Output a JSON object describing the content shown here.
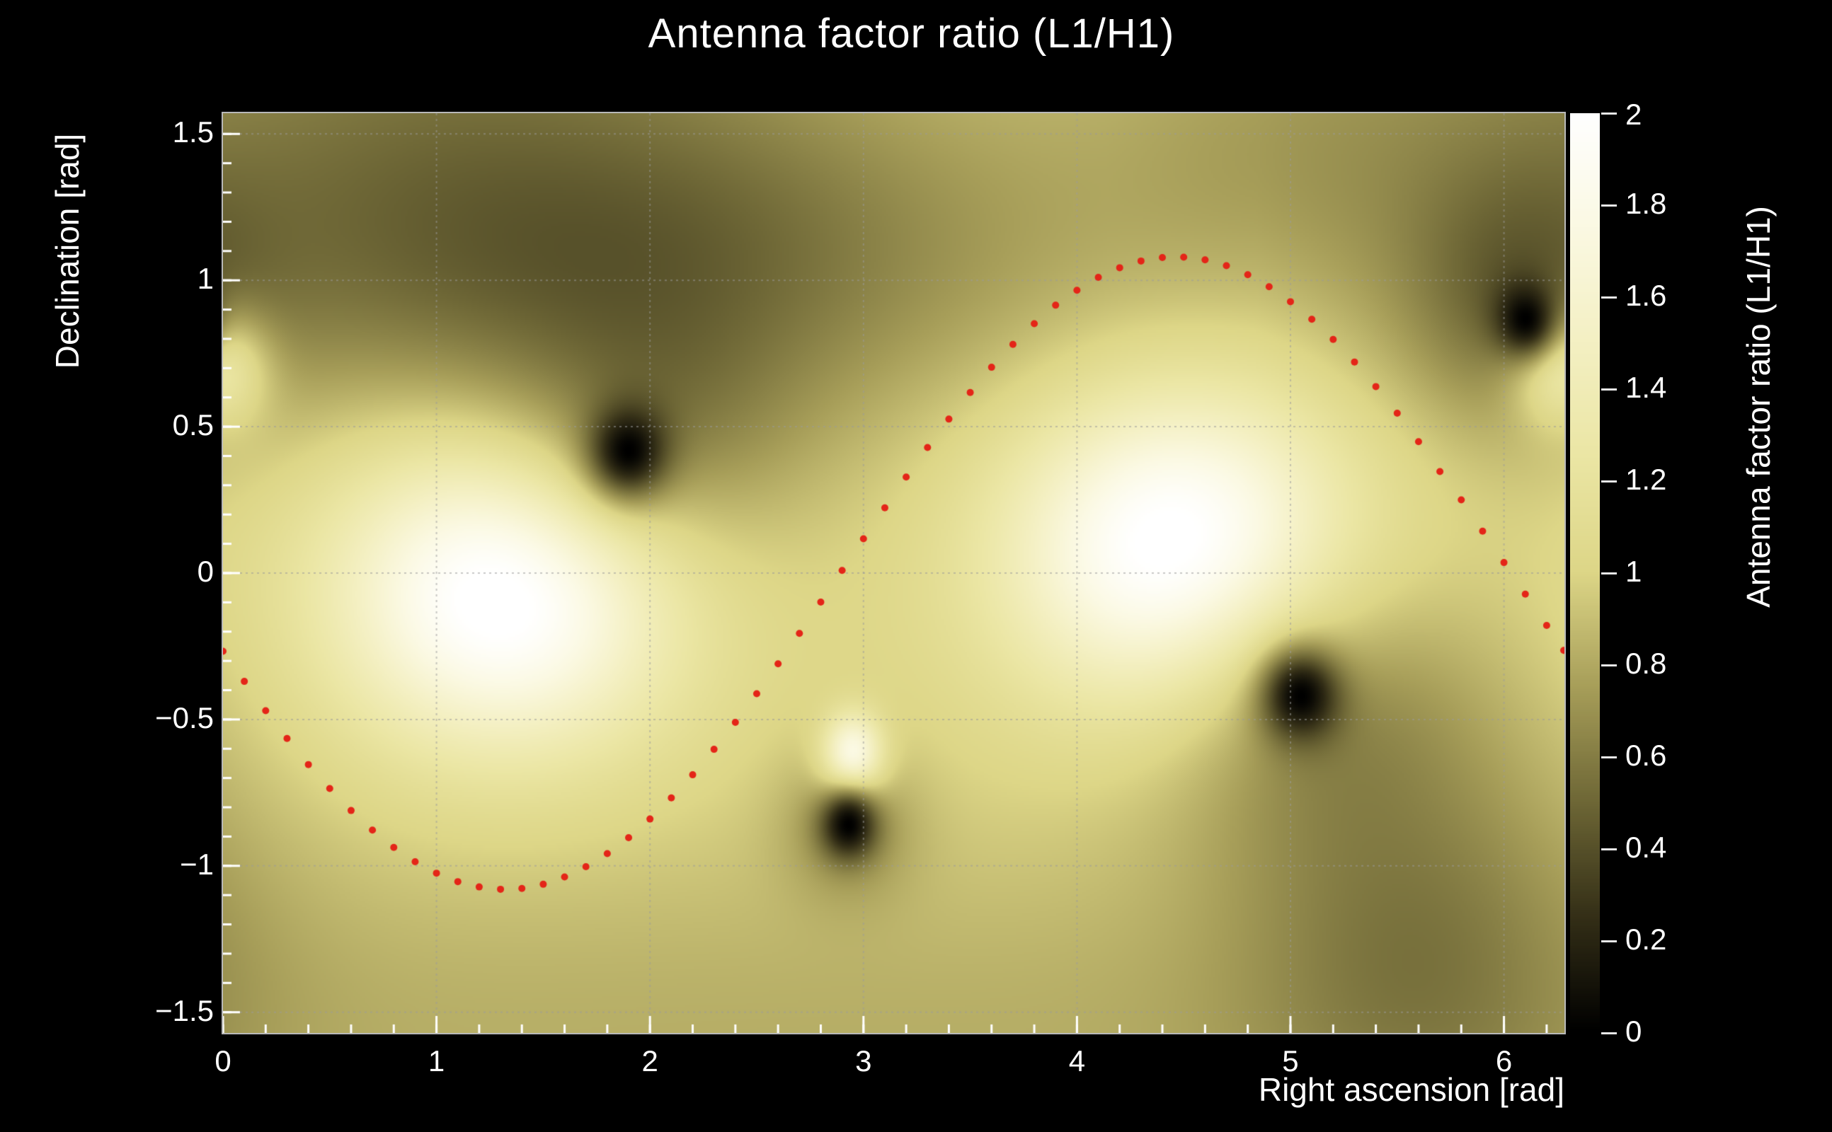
{
  "figure": {
    "background": "#000000",
    "text_color": "#ffffff",
    "frame_color": "#b9b9b9",
    "grid_color": "#9a9a9a"
  },
  "chart_data": {
    "type": "heatmap",
    "title": "Antenna factor ratio (L1/H1)",
    "xlabel": "Right ascension [rad]",
    "ylabel": "Declination [rad]",
    "colorbar_label": "Antenna factor ratio (L1/H1)",
    "xlim": [
      0,
      6.2832
    ],
    "ylim": [
      -1.5708,
      1.5708
    ],
    "zlim": [
      0,
      2
    ],
    "xticks": [
      0,
      1,
      2,
      3,
      4,
      5,
      6
    ],
    "xtick_labels": [
      "0",
      "1",
      "2",
      "3",
      "4",
      "5",
      "6"
    ],
    "xminor_step": 0.2,
    "yticks": [
      -1.5,
      -1,
      -0.5,
      0,
      0.5,
      1,
      1.5
    ],
    "ytick_labels": [
      "−1.5",
      "−1",
      "−0.5",
      "0",
      "0.5",
      "1",
      "1.5"
    ],
    "yminor_step": 0.1,
    "colorbar_ticks": [
      0,
      0.2,
      0.4,
      0.6,
      0.8,
      1,
      1.2,
      1.4,
      1.6,
      1.8,
      2
    ],
    "colorbar_tick_labels": [
      "0",
      "0.2",
      "0.4",
      "0.6",
      "0.8",
      "1",
      "1.2",
      "1.4",
      "1.6",
      "1.8",
      "2"
    ],
    "grid": true,
    "base_value": 1.0,
    "colormap_stops": [
      [
        0.0,
        "#000000"
      ],
      [
        0.25,
        "#342f17"
      ],
      [
        0.5,
        "#6e6736"
      ],
      [
        0.75,
        "#a79e59"
      ],
      [
        1.0,
        "#ddd687"
      ],
      [
        1.25,
        "#ebe6a4"
      ],
      [
        1.5,
        "#f4f0c3"
      ],
      [
        1.75,
        "#fbf9e3"
      ],
      [
        2.0,
        "#ffffff"
      ]
    ],
    "bright_spots": [
      {
        "ra": 1.32,
        "dec": -0.05,
        "sigma_ra": 0.55,
        "sigma_dec": 0.38,
        "peak_add": 1.15
      },
      {
        "ra": 4.47,
        "dec": 0.08,
        "sigma_ra": 0.55,
        "sigma_dec": 0.38,
        "peak_add": 1.15
      },
      {
        "ra": 2.95,
        "dec": -0.63,
        "sigma_ra": 0.1,
        "sigma_dec": 0.1,
        "peak_add": 1.05
      },
      {
        "ra": 6.26,
        "dec": 0.73,
        "sigma_ra": 0.16,
        "sigma_dec": 0.14,
        "peak_add": 1.05
      }
    ],
    "null_spots": [
      {
        "ra": 1.9,
        "dec": 0.42,
        "sigma_ra": 0.13,
        "sigma_dec": 0.11,
        "depth": 1.0
      },
      {
        "ra": 5.05,
        "dec": -0.42,
        "sigma_ra": 0.13,
        "sigma_dec": 0.11,
        "depth": 1.0
      },
      {
        "ra": 2.93,
        "dec": -0.86,
        "sigma_ra": 0.09,
        "sigma_dec": 0.08,
        "depth": 1.0
      },
      {
        "ra": 6.1,
        "dec": 0.87,
        "sigma_ra": 0.1,
        "sigma_dec": 0.09,
        "depth": 1.0
      }
    ],
    "shading_regions": [
      {
        "ra": 1.7,
        "dec": 1.08,
        "sigma_ra": 1.5,
        "sigma_dec": 0.42,
        "depth": 0.5
      },
      {
        "ra": 1.0,
        "dec": 1.62,
        "sigma_ra": 1.3,
        "sigma_dec": 0.5,
        "depth": 0.3
      },
      {
        "ra": 2.0,
        "dec": 0.5,
        "sigma_ra": 0.5,
        "sigma_dec": 0.35,
        "depth": 0.35
      },
      {
        "ra": 5.15,
        "dec": -0.5,
        "sigma_ra": 0.55,
        "sigma_dec": 0.38,
        "depth": 0.35
      },
      {
        "ra": 5.6,
        "dec": -1.3,
        "sigma_ra": 0.6,
        "sigma_dec": 0.5,
        "depth": 0.35
      },
      {
        "ra": 6.05,
        "dec": 0.95,
        "sigma_ra": 0.35,
        "sigma_dec": 0.3,
        "depth": 0.4
      },
      {
        "ra": 2.93,
        "dec": -0.86,
        "sigma_ra": 0.22,
        "sigma_dec": 0.18,
        "depth": 0.3
      },
      {
        "ra": 3.14,
        "dec": -1.62,
        "sigma_ra": 9.0,
        "sigma_dec": 0.5,
        "depth": 0.18
      },
      {
        "ra": 5.0,
        "dec": 1.45,
        "sigma_ra": 0.8,
        "sigma_dec": 0.4,
        "depth": 0.2
      }
    ],
    "overlay_curve": {
      "description": "red dotted sky track",
      "color": "#e42518",
      "marker": "dot",
      "points": [
        [
          0.0,
          -0.267
        ],
        [
          0.1,
          -0.37
        ],
        [
          0.2,
          -0.47
        ],
        [
          0.3,
          -0.565
        ],
        [
          0.4,
          -0.654
        ],
        [
          0.5,
          -0.736
        ],
        [
          0.6,
          -0.811
        ],
        [
          0.7,
          -0.878
        ],
        [
          0.8,
          -0.937
        ],
        [
          0.9,
          -0.986
        ],
        [
          1.0,
          -1.025
        ],
        [
          1.1,
          -1.054
        ],
        [
          1.2,
          -1.072
        ],
        [
          1.3,
          -1.08
        ],
        [
          1.4,
          -1.077
        ],
        [
          1.5,
          -1.063
        ],
        [
          1.6,
          -1.038
        ],
        [
          1.7,
          -1.003
        ],
        [
          1.8,
          -0.958
        ],
        [
          1.9,
          -0.904
        ],
        [
          2.0,
          -0.84
        ],
        [
          2.1,
          -0.768
        ],
        [
          2.2,
          -0.689
        ],
        [
          2.3,
          -0.602
        ],
        [
          2.4,
          -0.51
        ],
        [
          2.5,
          -0.412
        ],
        [
          2.6,
          -0.31
        ],
        [
          2.7,
          -0.206
        ],
        [
          2.8,
          -0.099
        ],
        [
          2.9,
          0.009
        ],
        [
          3.0,
          0.117
        ],
        [
          3.1,
          0.223
        ],
        [
          3.2,
          0.328
        ],
        [
          3.3,
          0.429
        ],
        [
          3.4,
          0.526
        ],
        [
          3.5,
          0.617
        ],
        [
          3.6,
          0.703
        ],
        [
          3.7,
          0.781
        ],
        [
          3.8,
          0.852
        ],
        [
          3.9,
          0.915
        ],
        [
          4.0,
          0.966
        ],
        [
          4.1,
          1.01
        ],
        [
          4.2,
          1.043
        ],
        [
          4.3,
          1.066
        ],
        [
          4.4,
          1.078
        ],
        [
          4.5,
          1.079
        ],
        [
          4.6,
          1.07
        ],
        [
          4.7,
          1.05
        ],
        [
          4.8,
          1.019
        ],
        [
          4.9,
          0.978
        ],
        [
          5.0,
          0.927
        ],
        [
          5.1,
          0.867
        ],
        [
          5.2,
          0.798
        ],
        [
          5.3,
          0.721
        ],
        [
          5.4,
          0.637
        ],
        [
          5.5,
          0.546
        ],
        [
          5.6,
          0.449
        ],
        [
          5.7,
          0.347
        ],
        [
          5.8,
          0.25
        ],
        [
          5.9,
          0.143
        ],
        [
          6.0,
          0.036
        ],
        [
          6.1,
          -0.072
        ],
        [
          6.2,
          -0.179
        ],
        [
          6.28,
          -0.264
        ]
      ]
    }
  }
}
